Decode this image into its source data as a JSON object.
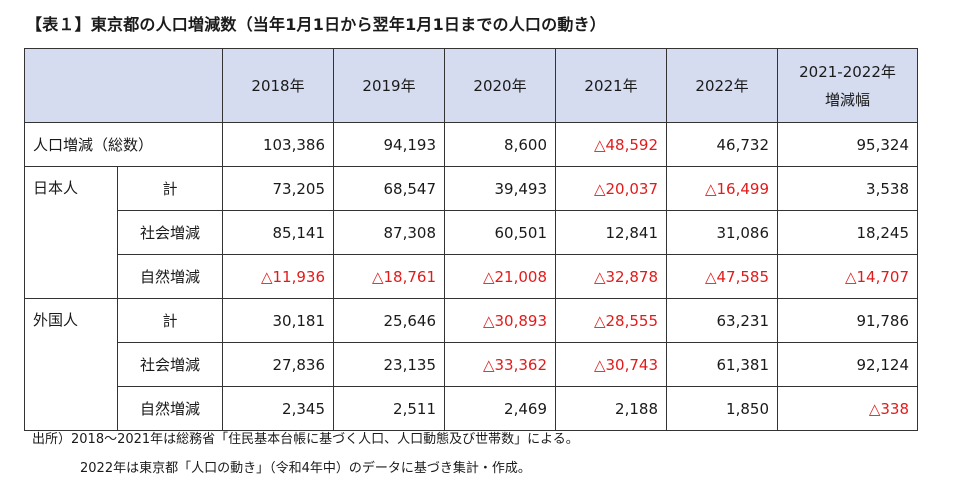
{
  "title": "【表１】東京都の人口増減数（当年1月1日から翌年1月1日までの人口の動き）",
  "header": {
    "years": [
      "2018年",
      "2019年",
      "2020年",
      "2021年",
      "2022年"
    ],
    "last_col_line1": "2021-2022年",
    "last_col_line2": "増減幅"
  },
  "rows": {
    "total": {
      "label": "人口増減（総数）",
      "values": [
        "103,386",
        "94,193",
        "8,600",
        "△48,592",
        "46,732",
        "95,324"
      ]
    },
    "japanese": {
      "category": "日本人",
      "total": {
        "label": "計",
        "values": [
          "73,205",
          "68,547",
          "39,493",
          "△20,037",
          "△16,499",
          "3,538"
        ]
      },
      "social": {
        "label": "社会増減",
        "values": [
          "85,141",
          "87,308",
          "60,501",
          "12,841",
          "31,086",
          "18,245"
        ]
      },
      "natural": {
        "label": "自然増減",
        "values": [
          "△11,936",
          "△18,761",
          "△21,008",
          "△32,878",
          "△47,585",
          "△14,707"
        ]
      }
    },
    "foreign": {
      "category": "外国人",
      "total": {
        "label": "計",
        "values": [
          "30,181",
          "25,646",
          "△30,893",
          "△28,555",
          "63,231",
          "91,786"
        ]
      },
      "social": {
        "label": "社会増減",
        "values": [
          "27,836",
          "23,135",
          "△33,362",
          "△30,743",
          "61,381",
          "92,124"
        ]
      },
      "natural": {
        "label": "自然増減",
        "values": [
          "2,345",
          "2,511",
          "2,469",
          "2,188",
          "1,850",
          "△338"
        ]
      }
    }
  },
  "notes": {
    "line1": "出所）2018～2021年は総務省「住民基本台帳に基づく人口、人口動態及び世帯数」による。",
    "line2": "2022年は東京都「人口の動き」（令和4年中）のデータに基づき集計・作成。"
  },
  "colors": {
    "header_bg": "#d6dcf0",
    "negative": "#e31a1a",
    "text": "#1a1a1a",
    "border": "#333333"
  }
}
